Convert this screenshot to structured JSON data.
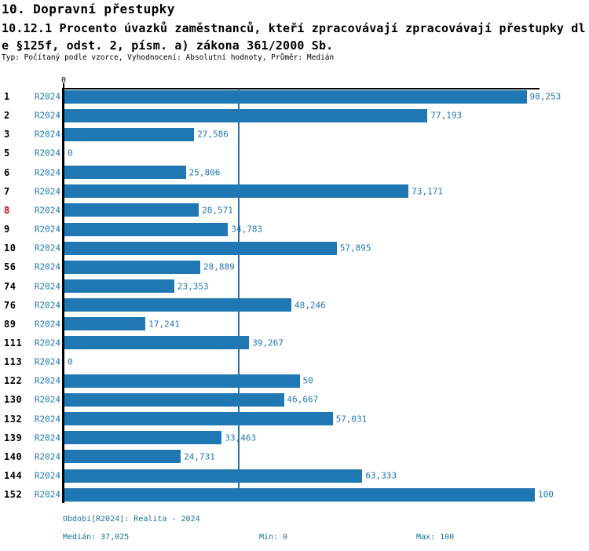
{
  "header": {
    "title": "10. Dopravní přestupky",
    "subtitle": "10.12.1 Procento úvazků zaměstnanců, kteří zpracovávají zpracovávají přestupky dle §125f, odst. 2, písm. a) zákona 361/2000 Sb.",
    "meta": "Typ: Počítaný podle vzorce, Vyhodnocení: Absolutní hodnoty, Průměr: Medián"
  },
  "chart_data": {
    "type": "bar",
    "orientation": "horizontal",
    "series_label": "R2024",
    "categories": [
      "1",
      "2",
      "3",
      "5",
      "6",
      "7",
      "8",
      "9",
      "10",
      "56",
      "74",
      "76",
      "89",
      "111",
      "113",
      "122",
      "130",
      "132",
      "139",
      "140",
      "144",
      "152"
    ],
    "values": [
      98.253,
      77.193,
      27.586,
      0,
      25.806,
      73.171,
      28.571,
      34.783,
      57.895,
      28.889,
      23.353,
      48.246,
      17.241,
      39.267,
      0,
      50,
      46.667,
      57.031,
      33.463,
      24.731,
      63.333,
      100
    ],
    "value_labels": [
      "98,253",
      "77,193",
      "27,586",
      "0",
      "25,806",
      "73,171",
      "28,571",
      "34,783",
      "57,895",
      "28,889",
      "23,353",
      "48,246",
      "17,241",
      "39,267",
      "0",
      "50",
      "46,667",
      "57,031",
      "33,463",
      "24,731",
      "63,333",
      "100"
    ],
    "highlighted_categories": [
      "8"
    ],
    "axis_tick_label": "0",
    "xlim": [
      0,
      100
    ],
    "median_value": 37.025,
    "legend_position": "none",
    "grid": false
  },
  "footer": {
    "period": "Období[R2024]: Realita - 2024",
    "median": "Medián: 37,025",
    "min": "Min: 0",
    "max": "Max: 100"
  },
  "colors": {
    "bar": "#1f77b4",
    "series_text": "#2077b4",
    "value_text": "#1f77b4",
    "median_line": "#1f77b4",
    "footer_text": "#18719b",
    "highlight": "#cc0000",
    "text": "#000000"
  }
}
